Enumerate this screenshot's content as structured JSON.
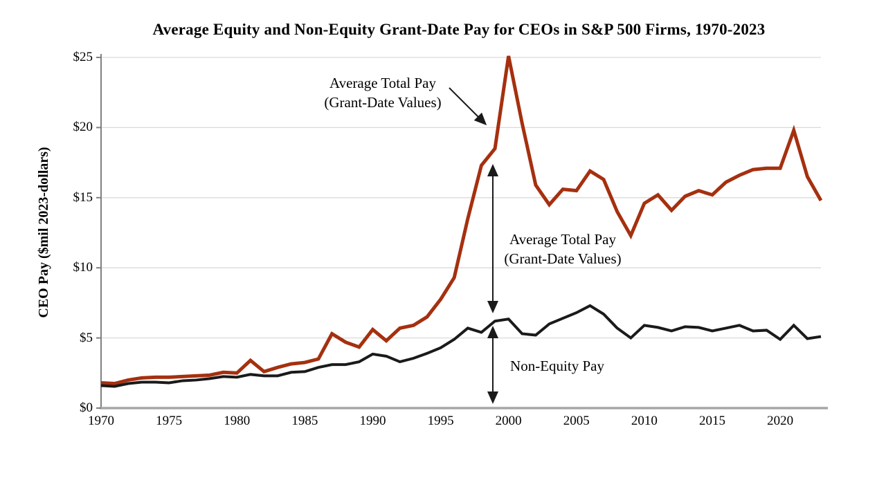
{
  "title": "Average Equity and Non-Equity Grant-Date Pay for CEOs in S&P 500 Firms, 1970-2023",
  "y_axis": {
    "label": "CEO Pay ($mil 2023-dollars)",
    "tick_labels": [
      "$0",
      "$5",
      "$10",
      "$15",
      "$20",
      "$25"
    ],
    "tick_values": [
      0,
      5,
      10,
      15,
      20,
      25
    ]
  },
  "x_axis": {
    "tick_labels": [
      "1970",
      "1975",
      "1980",
      "1985",
      "1990",
      "1995",
      "2000",
      "2005",
      "2010",
      "2015",
      "2020"
    ],
    "tick_values": [
      1970,
      1975,
      1980,
      1985,
      1990,
      1995,
      2000,
      2005,
      2010,
      2015,
      2020
    ]
  },
  "annotations": {
    "callout": {
      "line1": "Average Total Pay",
      "line2": "(Grant-Date Values)"
    },
    "equity_span": {
      "line1": "Average Total Pay",
      "line2": "(Grant-Date Values)"
    },
    "non_equity_span": {
      "label": "Non-Equity Pay"
    }
  },
  "colors": {
    "total_pay_line": "#A5300F",
    "non_equity_line": "#1A1A1A",
    "gridline": "#D9D9D9",
    "baseline_axis": "#A6A6A6",
    "y_axis_line": "#808080",
    "arrow": "#1A1A1A"
  },
  "chart_data": {
    "type": "line",
    "title": "Average Equity and Non-Equity Grant-Date Pay for CEOs in S&P 500 Firms, 1970-2023",
    "xlabel": "",
    "ylabel": "CEO Pay ($mil 2023-dollars)",
    "xlim": [
      1970,
      2023
    ],
    "ylim": [
      0,
      25
    ],
    "grid": "horizontal",
    "legend_position": "none (labels drawn as in-plot annotations with arrows)",
    "years": [
      1970,
      1971,
      1972,
      1973,
      1974,
      1975,
      1976,
      1977,
      1978,
      1979,
      1980,
      1981,
      1982,
      1983,
      1984,
      1985,
      1986,
      1987,
      1988,
      1989,
      1990,
      1991,
      1992,
      1993,
      1994,
      1995,
      1996,
      1997,
      1998,
      1999,
      2000,
      2001,
      2002,
      2003,
      2004,
      2005,
      2006,
      2007,
      2008,
      2009,
      2010,
      2011,
      2012,
      2013,
      2014,
      2015,
      2016,
      2017,
      2018,
      2019,
      2020,
      2021,
      2022,
      2023
    ],
    "series": [
      {
        "name": "Average Total Pay (Grant-Date Values)",
        "color": "#A5300F",
        "values": [
          1.8,
          1.75,
          2.0,
          2.15,
          2.2,
          2.2,
          2.25,
          2.3,
          2.35,
          2.55,
          2.5,
          3.4,
          2.6,
          2.9,
          3.15,
          3.25,
          3.5,
          5.3,
          4.7,
          4.35,
          5.6,
          4.8,
          5.7,
          5.9,
          6.5,
          7.75,
          9.3,
          13.5,
          17.3,
          18.5,
          25.1,
          20.3,
          15.9,
          14.5,
          15.6,
          15.5,
          16.9,
          16.3,
          14.0,
          12.3,
          14.6,
          15.2,
          14.1,
          15.1,
          15.5,
          15.2,
          16.1,
          16.6,
          17.0,
          17.1,
          17.1,
          19.8,
          16.5,
          14.8
        ]
      },
      {
        "name": "Non-Equity Pay",
        "color": "#1A1A1A",
        "values": [
          1.6,
          1.55,
          1.75,
          1.85,
          1.85,
          1.8,
          1.95,
          2.0,
          2.1,
          2.25,
          2.2,
          2.4,
          2.3,
          2.3,
          2.55,
          2.6,
          2.9,
          3.1,
          3.1,
          3.3,
          3.85,
          3.7,
          3.3,
          3.55,
          3.9,
          4.3,
          4.9,
          5.7,
          5.4,
          6.2,
          6.35,
          5.3,
          5.2,
          6.0,
          6.4,
          6.8,
          7.3,
          6.7,
          5.7,
          5.0,
          5.9,
          5.75,
          5.5,
          5.8,
          5.75,
          5.5,
          5.7,
          5.9,
          5.5,
          5.55,
          4.9,
          5.9,
          4.95,
          5.1
        ]
      }
    ],
    "y_tick_labels": [
      "$0",
      "$5",
      "$10",
      "$15",
      "$20",
      "$25"
    ],
    "y_tick_values": [
      0,
      5,
      10,
      15,
      20,
      25
    ],
    "x_tick_values": [
      1970,
      1975,
      1980,
      1985,
      1990,
      1995,
      2000,
      2005,
      2010,
      2015,
      2020
    ]
  }
}
